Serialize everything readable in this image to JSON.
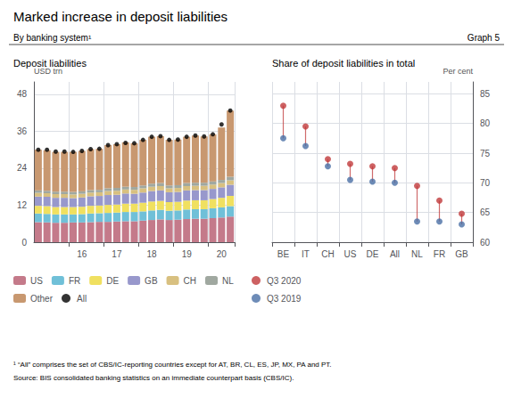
{
  "title": "Marked increase in deposit liabilities",
  "subtitle": "By banking system¹",
  "annotations": [
    "Graph 5",
    "¹ “All” comprises the set of CBS/IC-reporting countries except for AT, BR, CL, ES, JP, MX, PA and PT.",
    "Source: BIS consolidated banking statistics on an immediate counterpart basis (CBS/IC)."
  ],
  "chart_data": [
    {
      "type": "bar",
      "stacked": true,
      "title": "Deposit liabilities",
      "ylabel": "USD trn",
      "categories": [
        null,
        null,
        null,
        null,
        null,
        "16",
        null,
        null,
        null,
        "17",
        null,
        null,
        null,
        "18",
        null,
        null,
        null,
        "19",
        null,
        null,
        null,
        "20",
        null
      ],
      "series": [
        {
          "name": "US",
          "color": "#c47a8a",
          "values": [
            6.5,
            6.4,
            6.3,
            6.3,
            6.4,
            6.4,
            6.5,
            6.6,
            6.6,
            6.7,
            6.8,
            6.8,
            7.0,
            7.2,
            7.4,
            7.2,
            7.3,
            7.5,
            7.6,
            7.6,
            7.8,
            8.0,
            8.3
          ]
        },
        {
          "name": "FR",
          "color": "#70c0d8",
          "values": [
            2.8,
            2.8,
            2.7,
            2.7,
            2.6,
            2.7,
            2.8,
            2.8,
            2.9,
            2.9,
            3.0,
            3.0,
            3.0,
            3.1,
            3.1,
            3.0,
            3.0,
            3.1,
            3.1,
            3.1,
            3.2,
            3.3,
            3.4
          ]
        },
        {
          "name": "DE",
          "color": "#f0e060",
          "values": [
            2.5,
            2.5,
            2.4,
            2.4,
            2.4,
            2.4,
            2.5,
            2.5,
            2.6,
            2.6,
            2.7,
            2.7,
            2.8,
            2.9,
            2.9,
            2.8,
            2.8,
            2.9,
            2.9,
            2.9,
            3.0,
            3.1,
            3.3
          ]
        },
        {
          "name": "GB",
          "color": "#9898cc",
          "values": [
            3.0,
            3.0,
            3.0,
            3.0,
            2.9,
            3.0,
            3.1,
            3.1,
            3.2,
            3.2,
            3.3,
            3.2,
            3.3,
            3.4,
            3.4,
            3.2,
            3.2,
            3.3,
            3.3,
            3.3,
            3.3,
            3.4,
            3.6
          ]
        },
        {
          "name": "CH",
          "color": "#d8c080",
          "values": [
            1.2,
            1.2,
            1.2,
            1.2,
            1.2,
            1.2,
            1.2,
            1.2,
            1.3,
            1.3,
            1.3,
            1.3,
            1.4,
            1.4,
            1.4,
            1.3,
            1.3,
            1.4,
            1.4,
            1.4,
            1.4,
            1.4,
            1.5
          ]
        },
        {
          "name": "NL",
          "color": "#a0a8a0",
          "values": [
            0.8,
            0.8,
            0.8,
            0.8,
            0.8,
            0.8,
            0.8,
            0.8,
            0.9,
            0.9,
            0.9,
            0.9,
            0.9,
            1.0,
            1.0,
            0.9,
            0.9,
            1.0,
            1.0,
            1.0,
            1.0,
            1.0,
            1.1
          ]
        },
        {
          "name": "Other",
          "color": "#c89870",
          "values": [
            13.2,
            13.1,
            12.9,
            12.9,
            13.0,
            13.1,
            13.3,
            13.3,
            14.0,
            14.2,
            14.4,
            14.2,
            14.8,
            15.2,
            15.2,
            14.8,
            14.8,
            15.0,
            15.3,
            15.0,
            15.3,
            17.0,
            21.5
          ]
        },
        {
          "name": "All",
          "type": "scatter",
          "marker": "circle",
          "color": "#000000",
          "values": [
            30.0,
            30.0,
            29.4,
            29.4,
            29.3,
            29.6,
            30.2,
            30.3,
            31.5,
            31.8,
            32.2,
            32.1,
            33.2,
            34.2,
            34.4,
            33.2,
            33.3,
            34.2,
            34.6,
            34.3,
            35.0,
            38.2,
            42.7
          ]
        }
      ],
      "ylim": [
        0,
        52
      ],
      "yticks": [
        0,
        12,
        24,
        36,
        48
      ],
      "grid": true,
      "legend": "bottom"
    },
    {
      "type": "dumbbell",
      "title": "Share of deposit liabilities in total",
      "ylabel": "Per cent",
      "categories": [
        "BE",
        "IT",
        "CH",
        "US",
        "DE",
        "All",
        "NL",
        "FR",
        "GB"
      ],
      "series": [
        {
          "name": "Q3 2020",
          "color": "#c0393b",
          "marker": "circle",
          "values": [
            83.0,
            79.5,
            74.0,
            73.2,
            72.8,
            72.5,
            69.5,
            67.0,
            64.8
          ]
        },
        {
          "name": "Q3 2019",
          "color": "#4a6fa5",
          "marker": "circle",
          "values": [
            77.5,
            76.2,
            72.8,
            70.5,
            70.2,
            70.0,
            63.5,
            63.5,
            63.0
          ]
        }
      ],
      "ylim": [
        60,
        87
      ],
      "yticks": [
        60,
        65,
        70,
        75,
        80,
        85
      ],
      "grid": true,
      "legend": "bottom"
    }
  ]
}
